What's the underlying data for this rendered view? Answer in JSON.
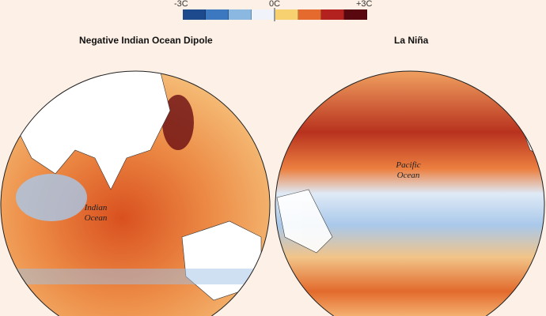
{
  "legend": {
    "min_label": "-3C",
    "mid_label": "0C",
    "max_label": "+3C",
    "colors": [
      "#1d4a8c",
      "#3b78c0",
      "#8ab8e0",
      "#f0f4fa",
      "#f7d070",
      "#e56a2e",
      "#b3221e",
      "#5a0810"
    ]
  },
  "maps": [
    {
      "title": "Negative Indian Ocean Dipole",
      "labels": [
        "Indian",
        "Ocean"
      ]
    },
    {
      "title": "La Niña",
      "labels": [
        "Pacific",
        "Ocean"
      ]
    }
  ],
  "colors": {
    "background": "#fdf0e6",
    "land": "#ffffff",
    "warm": "#e8743a",
    "cool": "#b9d3ec"
  }
}
